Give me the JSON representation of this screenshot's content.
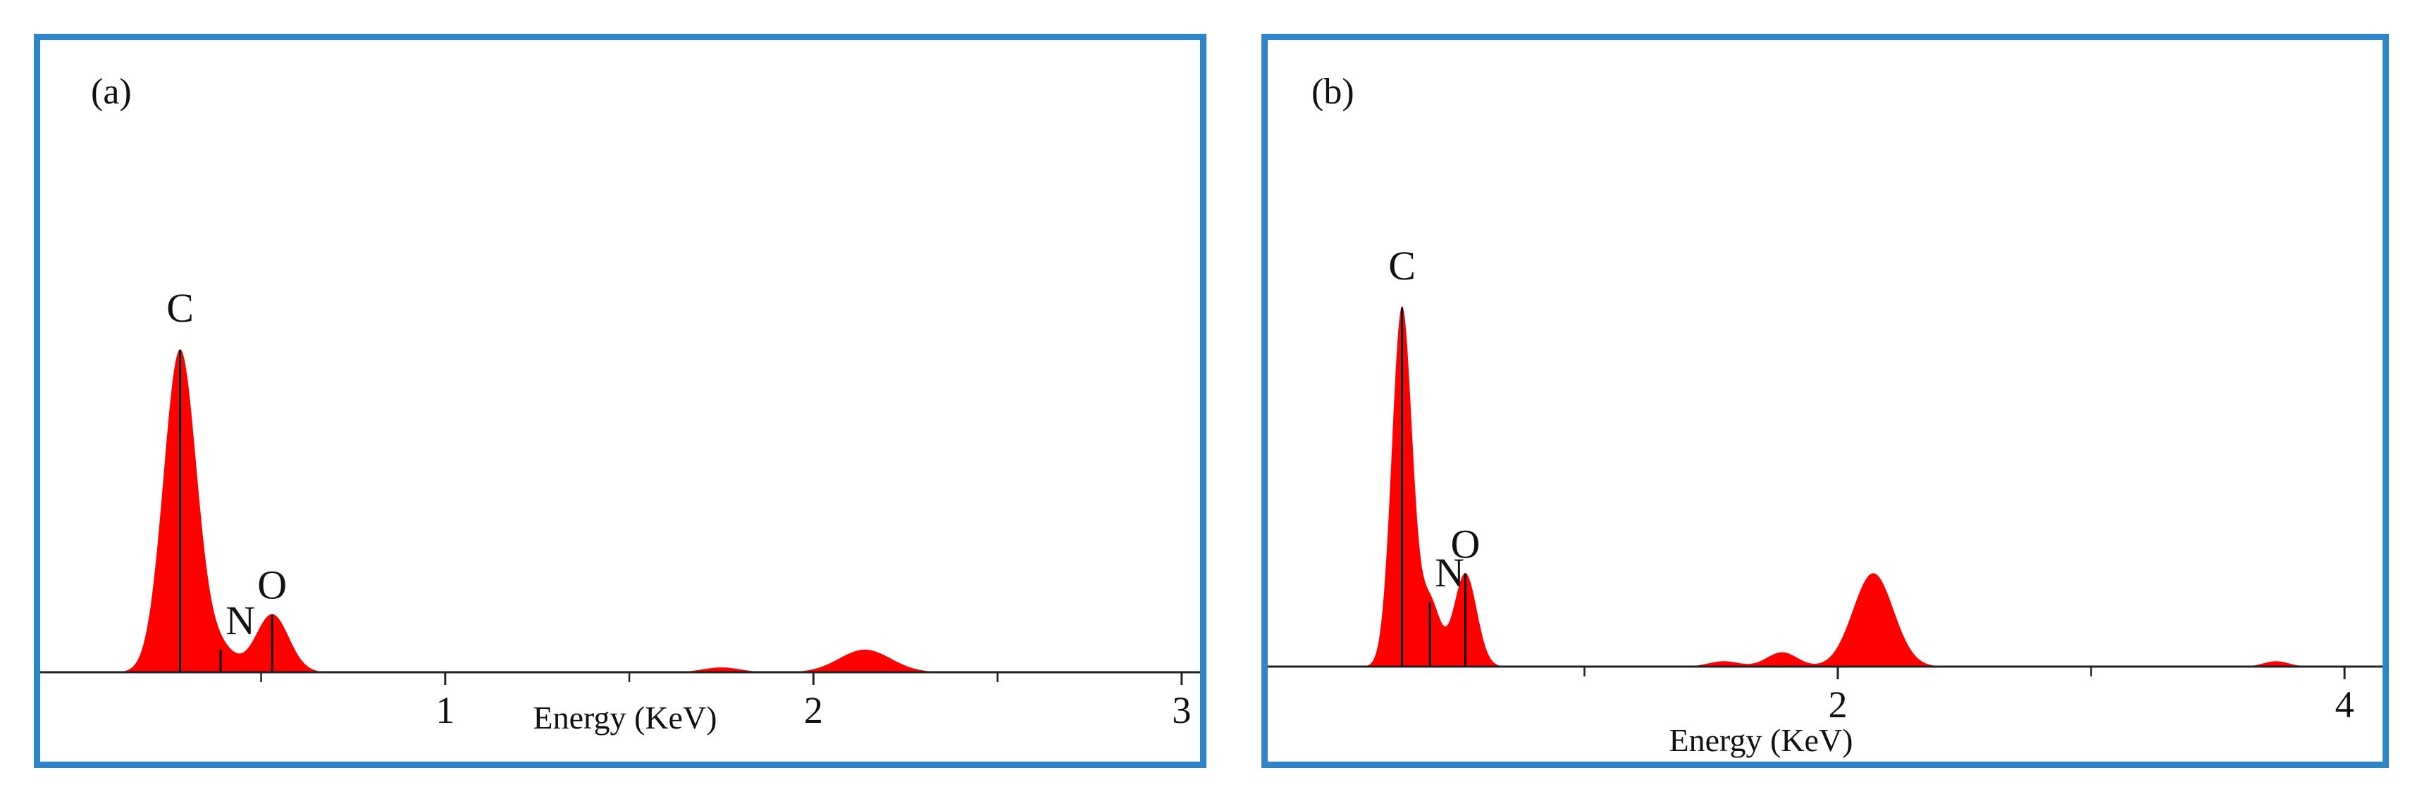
{
  "colors": {
    "border": "#2e86c8",
    "fill": "#ff0000",
    "axis": "#222222",
    "outline": "#9a9a9a",
    "marker": "#000000"
  },
  "chart_data": [
    {
      "type": "area",
      "panel_label": "(a)",
      "xlabel": "Energy (KeV)",
      "xlim": [
        -0.1,
        3.05
      ],
      "x_ticks": [
        1,
        2,
        3
      ],
      "x_tick_labels": [
        "1",
        "2",
        "3"
      ],
      "minor_ticks": [
        0.5,
        1.5,
        2.5
      ],
      "ylim": [
        0,
        105
      ],
      "peaks": [
        {
          "label": "C",
          "center": 0.28,
          "height": 100,
          "width": 0.045
        },
        {
          "label": "N",
          "center": 0.39,
          "height": 7,
          "width": 0.04
        },
        {
          "label": "O",
          "center": 0.53,
          "height": 18,
          "width": 0.045
        },
        {
          "label": "",
          "center": 1.75,
          "height": 1.5,
          "width": 0.05
        },
        {
          "label": "",
          "center": 2.14,
          "height": 7,
          "width": 0.07
        }
      ],
      "labelled_peaks": [
        {
          "text": "C",
          "x": 0.28,
          "height": 100
        },
        {
          "text": "N",
          "x": 0.39,
          "height": 7
        },
        {
          "text": "O",
          "x": 0.53,
          "height": 18
        }
      ]
    },
    {
      "type": "area",
      "panel_label": "(b)",
      "xlabel": "Energy (KeV)",
      "xlim": [
        -0.25,
        4.15
      ],
      "x_ticks": [
        2,
        4
      ],
      "x_tick_labels": [
        "2",
        "4"
      ],
      "minor_ticks": [
        1,
        3
      ],
      "ylim": [
        0,
        120
      ],
      "peaks": [
        {
          "label": "C",
          "center": 0.28,
          "height": 100,
          "width": 0.04
        },
        {
          "label": "N",
          "center": 0.39,
          "height": 18,
          "width": 0.04
        },
        {
          "label": "O",
          "center": 0.53,
          "height": 26,
          "width": 0.045
        },
        {
          "label": "",
          "center": 1.55,
          "height": 1.5,
          "width": 0.06
        },
        {
          "label": "",
          "center": 1.78,
          "height": 4,
          "width": 0.06
        },
        {
          "label": "",
          "center": 2.14,
          "height": 26,
          "width": 0.08
        },
        {
          "label": "",
          "center": 3.73,
          "height": 1.5,
          "width": 0.05
        }
      ],
      "labelled_peaks": [
        {
          "text": "C",
          "x": 0.28,
          "height": 100
        },
        {
          "text": "N",
          "x": 0.39,
          "height": 18
        },
        {
          "text": "O",
          "x": 0.53,
          "height": 26
        }
      ]
    }
  ]
}
